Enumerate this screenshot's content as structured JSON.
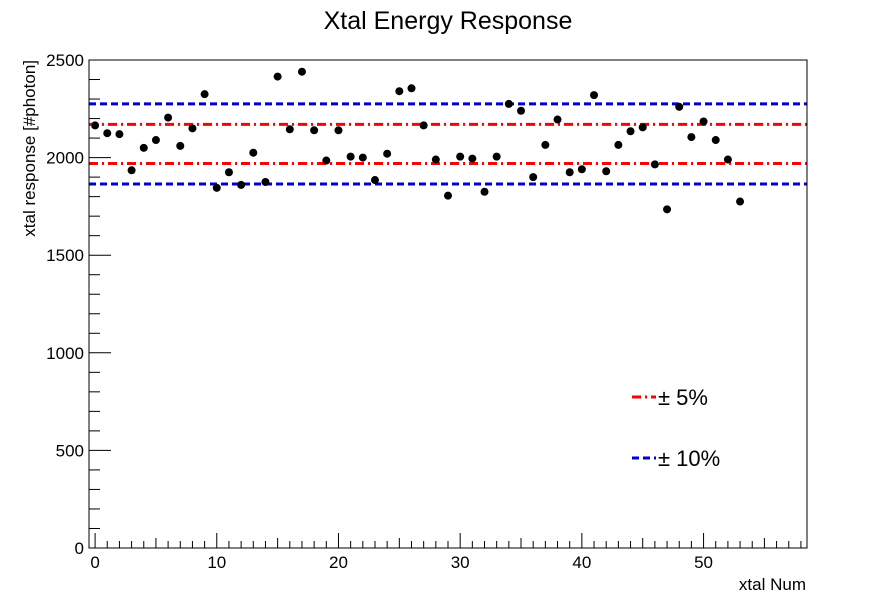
{
  "chart_data": {
    "type": "scatter",
    "title": "Xtal Energy Response",
    "xlabel": "xtal Num",
    "ylabel": "xtal response [#photon]",
    "xlim": [
      -0.5,
      58.5
    ],
    "ylim": [
      0,
      2500
    ],
    "x_ticks": [
      0,
      10,
      20,
      30,
      40,
      50
    ],
    "x_tick_labels": [
      "0",
      "10",
      "20",
      "30",
      "40",
      "50"
    ],
    "y_ticks": [
      0,
      500,
      1000,
      1500,
      2000,
      2500
    ],
    "y_tick_labels": [
      "0",
      "500",
      "1000",
      "1500",
      "2000",
      "2500"
    ],
    "grid": false,
    "legend_position": "bottom-right",
    "series": [
      {
        "color": "#000000",
        "x": [
          0,
          1,
          2,
          3,
          4,
          5,
          6,
          7,
          8,
          9,
          10,
          11,
          12,
          13,
          14,
          15,
          16,
          17,
          18,
          19,
          20,
          21,
          22,
          23,
          24,
          25,
          26,
          27,
          28,
          29,
          30,
          31,
          32,
          33,
          34,
          35,
          36,
          37,
          38,
          39,
          40,
          41,
          42,
          43,
          44,
          45,
          46,
          47,
          48,
          49,
          50,
          51,
          52,
          53
        ],
        "y": [
          2165,
          2125,
          2120,
          1935,
          2050,
          2090,
          2205,
          2060,
          2150,
          2325,
          1845,
          1925,
          1860,
          2025,
          1875,
          2415,
          2145,
          2440,
          2140,
          1985,
          2140,
          2005,
          2000,
          1885,
          2020,
          2340,
          2355,
          2165,
          1990,
          1805,
          2005,
          1995,
          1825,
          2005,
          2275,
          2240,
          1900,
          2065,
          2195,
          1925,
          1940,
          2320,
          1930,
          2065,
          2135,
          2155,
          1965,
          1735,
          2260,
          2105,
          2185,
          2090,
          1990,
          1775
        ]
      }
    ],
    "reference_lines": [
      {
        "name": "± 5%",
        "y": [
          1970,
          2170
        ],
        "color": "#ff0000",
        "style": "dash-dot"
      },
      {
        "name": "± 10%",
        "y": [
          1865,
          2275
        ],
        "color": "#0000cc",
        "style": "dashed"
      }
    ],
    "legend": [
      {
        "label": "± 5%",
        "color": "#ff0000",
        "style": "dash-dot"
      },
      {
        "label": "± 10%",
        "color": "#0000cc",
        "style": "dashed"
      }
    ]
  }
}
